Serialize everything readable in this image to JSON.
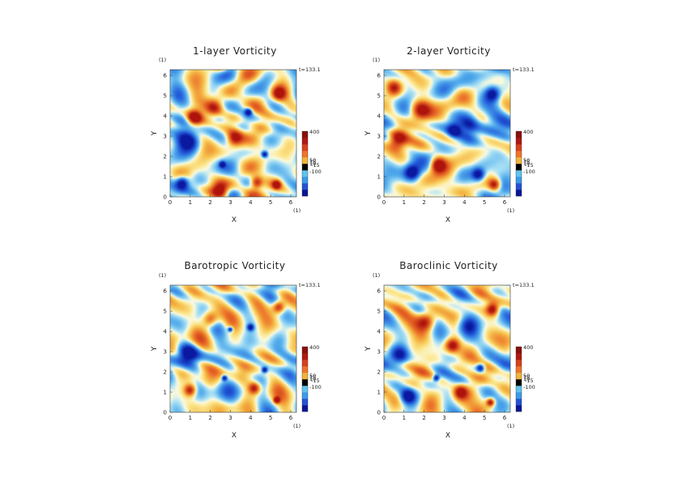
{
  "chart_data": [
    {
      "type": "heatmap",
      "title": "1-layer Vorticity",
      "xlabel": "X",
      "ylabel": "Y",
      "x_unit_label": "(1)",
      "y_unit_label": "(1)",
      "time_label": "t=133.1",
      "xlim": [
        0,
        6.2832
      ],
      "ylim": [
        0,
        6.2832
      ],
      "x_ticks": [
        "0",
        "1",
        "2",
        "3",
        "4",
        "5",
        "6"
      ],
      "y_ticks": [
        "0",
        "1",
        "2",
        "3",
        "4",
        "5",
        "6"
      ],
      "colorbar_labels": [
        "400",
        "50",
        "15",
        "10",
        "-15",
        "-100"
      ],
      "colorbar_values": [
        400,
        50,
        15,
        10,
        -15,
        -100
      ],
      "features": [
        {
          "x": 0.9,
          "y": 2.8,
          "r": 0.55,
          "sign": -1
        },
        {
          "x": 5.4,
          "y": 5.1,
          "r": 0.35,
          "sign": 1
        },
        {
          "x": 3.9,
          "y": 4.2,
          "r": 0.18,
          "sign": -1
        },
        {
          "x": 2.6,
          "y": 1.6,
          "r": 0.14,
          "sign": -1
        },
        {
          "x": 4.7,
          "y": 2.1,
          "r": 0.15,
          "sign": -1
        },
        {
          "x": 5.3,
          "y": 0.6,
          "r": 0.2,
          "sign": 1
        },
        {
          "x": 4.3,
          "y": 0.7,
          "r": 0.3,
          "sign": 1
        },
        {
          "x": 2.2,
          "y": 4.4,
          "r": 0.45,
          "sign": 1
        },
        {
          "x": 1.2,
          "y": 3.9,
          "r": 0.35,
          "sign": 1
        },
        {
          "x": 3.2,
          "y": 2.9,
          "r": 0.4,
          "sign": 1
        },
        {
          "x": 0.6,
          "y": 0.7,
          "r": 0.3,
          "sign": -1
        },
        {
          "x": 2.5,
          "y": 0.3,
          "r": 0.4,
          "sign": 1
        }
      ]
    },
    {
      "type": "heatmap",
      "title": "2-layer Vorticity",
      "xlabel": "X",
      "ylabel": "Y",
      "x_unit_label": "(1)",
      "y_unit_label": "(1)",
      "time_label": "t=133.1",
      "xlim": [
        0,
        6.2832
      ],
      "ylim": [
        0,
        6.2832
      ],
      "x_ticks": [
        "0",
        "1",
        "2",
        "3",
        "4",
        "5",
        "6"
      ],
      "y_ticks": [
        "0",
        "1",
        "2",
        "3",
        "4",
        "5",
        "6"
      ],
      "colorbar_labels": [
        "400",
        "50",
        "15",
        "10",
        "-15",
        "-100"
      ],
      "colorbar_values": [
        400,
        50,
        15,
        10,
        -15,
        -100
      ],
      "features": [
        {
          "x": 0.7,
          "y": 2.8,
          "r": 0.45,
          "sign": 1
        },
        {
          "x": 5.4,
          "y": 5.1,
          "r": 0.35,
          "sign": -1
        },
        {
          "x": 4.2,
          "y": 3.5,
          "r": 0.5,
          "sign": -1
        },
        {
          "x": 3.5,
          "y": 3.3,
          "r": 0.35,
          "sign": -1
        },
        {
          "x": 1.8,
          "y": 4.3,
          "r": 0.5,
          "sign": 1
        },
        {
          "x": 0.5,
          "y": 5.4,
          "r": 0.4,
          "sign": 1
        },
        {
          "x": 2.7,
          "y": 1.6,
          "r": 0.35,
          "sign": 1
        },
        {
          "x": 4.7,
          "y": 1.1,
          "r": 0.3,
          "sign": -1
        },
        {
          "x": 5.5,
          "y": 0.6,
          "r": 0.3,
          "sign": 1
        },
        {
          "x": 1.4,
          "y": 1.2,
          "r": 0.35,
          "sign": -1
        }
      ]
    },
    {
      "type": "heatmap",
      "title": "Barotropic Vorticity",
      "xlabel": "X",
      "ylabel": "Y",
      "x_unit_label": "(1)",
      "y_unit_label": "(1)",
      "time_label": "t=133.1",
      "xlim": [
        0,
        6.2832
      ],
      "ylim": [
        0,
        6.2832
      ],
      "x_ticks": [
        "0",
        "1",
        "2",
        "3",
        "4",
        "5",
        "6"
      ],
      "y_ticks": [
        "0",
        "1",
        "2",
        "3",
        "4",
        "5",
        "6"
      ],
      "colorbar_labels": [
        "400",
        "50",
        "15",
        "10",
        "-15",
        "-100"
      ],
      "colorbar_values": [
        400,
        50,
        15,
        10,
        -15,
        -100
      ],
      "features": [
        {
          "x": 0.9,
          "y": 2.9,
          "r": 0.5,
          "sign": -1
        },
        {
          "x": 5.4,
          "y": 5.2,
          "r": 0.3,
          "sign": 1
        },
        {
          "x": 4.0,
          "y": 4.2,
          "r": 0.15,
          "sign": -1
        },
        {
          "x": 2.7,
          "y": 1.7,
          "r": 0.13,
          "sign": -1
        },
        {
          "x": 4.7,
          "y": 2.1,
          "r": 0.13,
          "sign": -1
        },
        {
          "x": 5.3,
          "y": 0.6,
          "r": 0.15,
          "sign": 1
        },
        {
          "x": 3.0,
          "y": 4.1,
          "r": 0.12,
          "sign": -1
        },
        {
          "x": 2.0,
          "y": 4.6,
          "r": 0.4,
          "sign": 1
        },
        {
          "x": 1.0,
          "y": 1.1,
          "r": 0.3,
          "sign": 1
        },
        {
          "x": 4.2,
          "y": 1.2,
          "r": 0.3,
          "sign": 1
        }
      ]
    },
    {
      "type": "heatmap",
      "title": "Baroclinic Vorticity",
      "xlabel": "X",
      "ylabel": "Y",
      "x_unit_label": "(1)",
      "y_unit_label": "(1)",
      "time_label": "t=133.1",
      "xlim": [
        0,
        6.2832
      ],
      "ylim": [
        0,
        6.2832
      ],
      "x_ticks": [
        "0",
        "1",
        "2",
        "3",
        "4",
        "5",
        "6"
      ],
      "y_ticks": [
        "0",
        "1",
        "2",
        "3",
        "4",
        "5",
        "6"
      ],
      "colorbar_labels": [
        "400",
        "50",
        "15",
        "10",
        "-15",
        "-100"
      ],
      "colorbar_values": [
        400,
        50,
        15,
        10,
        -15,
        -100
      ],
      "features": [
        {
          "x": 0.8,
          "y": 2.8,
          "r": 0.45,
          "sign": -1
        },
        {
          "x": 5.4,
          "y": 5.1,
          "r": 0.3,
          "sign": 1
        },
        {
          "x": 4.2,
          "y": 4.3,
          "r": 0.5,
          "sign": -1
        },
        {
          "x": 3.4,
          "y": 3.3,
          "r": 0.35,
          "sign": 1
        },
        {
          "x": 2.1,
          "y": 4.5,
          "r": 0.45,
          "sign": 1
        },
        {
          "x": 2.6,
          "y": 1.7,
          "r": 0.15,
          "sign": -1
        },
        {
          "x": 4.8,
          "y": 2.2,
          "r": 0.2,
          "sign": -1
        },
        {
          "x": 5.3,
          "y": 0.5,
          "r": 0.2,
          "sign": 1
        },
        {
          "x": 1.2,
          "y": 0.8,
          "r": 0.35,
          "sign": -1
        },
        {
          "x": 3.8,
          "y": 1.0,
          "r": 0.35,
          "sign": 1
        }
      ]
    }
  ],
  "colors": {
    "strong_positive": "#b2180a",
    "positive": "#e64b1d",
    "weak_positive": "#f7c04a",
    "neutral": "#fff7c8",
    "weak_negative": "#86d0f0",
    "negative": "#2f8fe0",
    "strong_negative": "#0a1fa8",
    "colorbar": [
      "#0b1596",
      "#2452d6",
      "#3a9be8",
      "#5fc4ee",
      "#000000",
      "#f1b43a",
      "#f0732a",
      "#d9401c",
      "#b1180f",
      "#8a0f0a"
    ]
  }
}
